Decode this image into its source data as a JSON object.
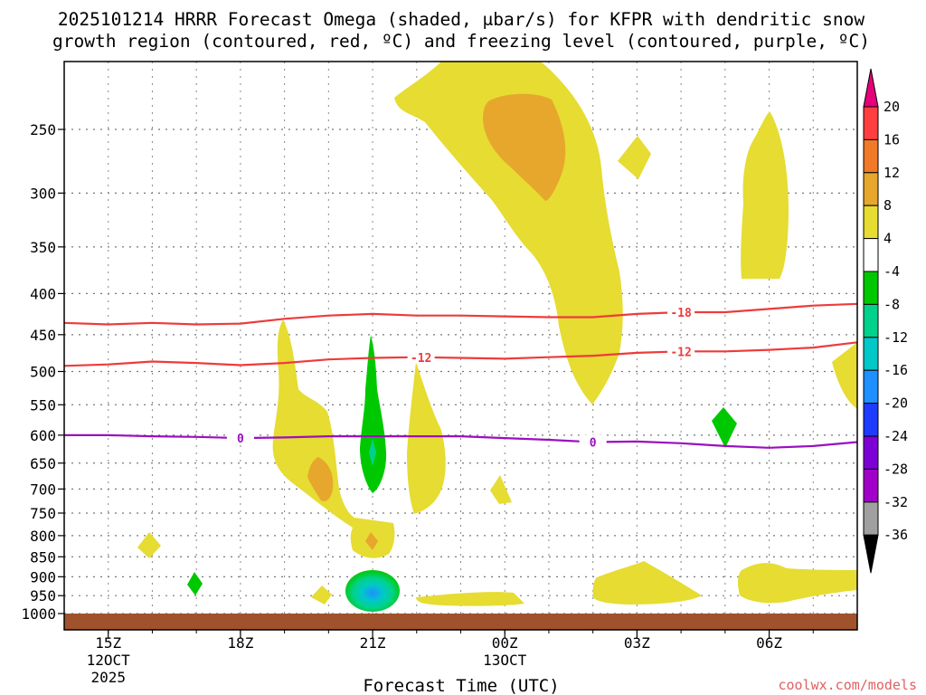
{
  "chart_data": {
    "type": "heatmap",
    "title_line1": "2025101214 HRRR Forecast Omega (shaded, μbar/s) for KFPR with dendritic snow",
    "title_line2": "growth region (contoured, red, ºC) and freezing level (contoured, purple, ºC)",
    "xlabel": "Forecast Time (UTC)",
    "x_ticks": [
      {
        "hour": 15,
        "label": "15Z",
        "sub1": "12OCT",
        "sub2": "2025"
      },
      {
        "hour": 18,
        "label": "18Z",
        "sub1": "",
        "sub2": ""
      },
      {
        "hour": 21,
        "label": "21Z",
        "sub1": "",
        "sub2": ""
      },
      {
        "hour": 24,
        "label": "00Z",
        "sub1": "13OCT",
        "sub2": ""
      },
      {
        "hour": 27,
        "label": "03Z",
        "sub1": "",
        "sub2": ""
      },
      {
        "hour": 30,
        "label": "06Z",
        "sub1": "",
        "sub2": ""
      }
    ],
    "x_range_hours": [
      14.0,
      32.0
    ],
    "y_ticks": [
      250,
      300,
      350,
      400,
      450,
      500,
      550,
      600,
      650,
      700,
      750,
      800,
      850,
      900,
      950,
      1000
    ],
    "y_range_hpa": [
      1020,
      200
    ],
    "colorbar": {
      "labels": [
        "20",
        "16",
        "12",
        "8",
        "4",
        "-4",
        "-8",
        "-12",
        "-16",
        "-20",
        "-24",
        "-28",
        "-32",
        "-36"
      ],
      "colors": [
        "#ff3f3f",
        "#f07a28",
        "#e6a72c",
        "#e6dc32",
        "#ffffff",
        "#00c800",
        "#00d28c",
        "#00c8c8",
        "#1e90ff",
        "#1e3cff",
        "#7d00d7",
        "#a000c8",
        "#a0a0a0"
      ],
      "top_arrow_color": "#e6007a",
      "bottom_arrow_color": "#000000"
    },
    "dgz_contours": [
      {
        "value": -18,
        "label": "-18",
        "color": "#ee3b3b",
        "points": [
          [
            14.0,
            435
          ],
          [
            15.0,
            437
          ],
          [
            16.0,
            435
          ],
          [
            17.0,
            437
          ],
          [
            18.0,
            436
          ],
          [
            19.0,
            430
          ],
          [
            20.0,
            426
          ],
          [
            21.0,
            424
          ],
          [
            22.0,
            426
          ],
          [
            23.0,
            426
          ],
          [
            24.0,
            427
          ],
          [
            25.0,
            428
          ],
          [
            26.0,
            428
          ],
          [
            27.0,
            424
          ],
          [
            28.0,
            422
          ],
          [
            29.0,
            422
          ],
          [
            30.0,
            418
          ],
          [
            31.0,
            414
          ],
          [
            32.0,
            412
          ]
        ],
        "label_at": 28.0
      },
      {
        "value": -12,
        "label": "-12",
        "color": "#ee3b3b",
        "points": [
          [
            14.0,
            492
          ],
          [
            15.0,
            490
          ],
          [
            16.0,
            486
          ],
          [
            17.0,
            488
          ],
          [
            18.0,
            491
          ],
          [
            19.0,
            488
          ],
          [
            20.0,
            483
          ],
          [
            21.0,
            481
          ],
          [
            22.0,
            480
          ],
          [
            23.0,
            481
          ],
          [
            24.0,
            482
          ],
          [
            25.0,
            480
          ],
          [
            26.0,
            478
          ],
          [
            27.0,
            474
          ],
          [
            28.0,
            472
          ],
          [
            29.0,
            472
          ],
          [
            30.0,
            470
          ],
          [
            31.0,
            467
          ],
          [
            32.0,
            460
          ]
        ],
        "label_at": 22.1
      }
    ],
    "dgz_extra_label": {
      "text": "-12",
      "at": 28.0,
      "hpa": 472
    },
    "freezing_contour": {
      "value": 0,
      "label": "0",
      "color": "#9b0fbf",
      "points": [
        [
          14.0,
          600
        ],
        [
          15.0,
          600
        ],
        [
          16.0,
          602
        ],
        [
          17.0,
          603
        ],
        [
          18.0,
          605
        ],
        [
          19.0,
          604
        ],
        [
          20.0,
          602
        ],
        [
          21.0,
          602
        ],
        [
          22.0,
          602
        ],
        [
          23.0,
          602
        ],
        [
          24.0,
          605
        ],
        [
          25.0,
          608
        ],
        [
          26.0,
          612
        ],
        [
          27.0,
          611
        ],
        [
          28.0,
          614
        ],
        [
          29.0,
          619
        ],
        [
          30.0,
          622
        ],
        [
          31.0,
          619
        ],
        [
          32.0,
          612
        ]
      ],
      "label_ats": [
        18.0,
        26.0
      ]
    },
    "ground_level_hpa": 1010,
    "ground_color": "#a0522d",
    "credit": "coolwx.com/models"
  }
}
